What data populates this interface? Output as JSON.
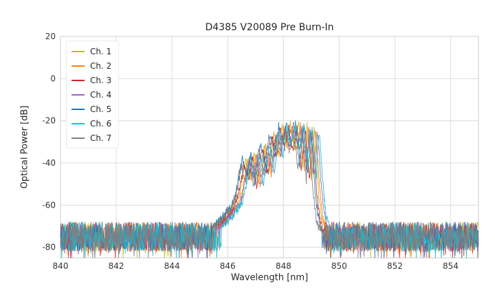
{
  "chart_data": {
    "type": "line",
    "title": "D4385 V20089 Pre Burn-In",
    "xlabel": "Wavelength [nm]",
    "ylabel": "Optical Power [dB]",
    "xlim": [
      840,
      855
    ],
    "ylim": [
      -85,
      20
    ],
    "x_ticks": [
      840,
      842,
      844,
      846,
      848,
      850,
      852,
      854
    ],
    "y_ticks": [
      20,
      0,
      -20,
      -40,
      -60,
      -80
    ],
    "grid": true,
    "grid_color": "#dcdcdc",
    "frame_color": "#cccccc",
    "legend_position": "upper left",
    "noise": {
      "mean_db": -75,
      "spread_db": 7,
      "spike_prob": 0.06,
      "spike_extra_db": 9,
      "x_step_nm": 0.015
    },
    "envelope_base": [
      [
        845.6,
        -70
      ],
      [
        845.9,
        -66
      ],
      [
        846.15,
        -62
      ],
      [
        846.35,
        -58
      ],
      [
        846.5,
        -50
      ],
      [
        846.65,
        -38
      ],
      [
        846.8,
        -46
      ],
      [
        846.95,
        -36
      ],
      [
        847.1,
        -50
      ],
      [
        847.3,
        -31
      ],
      [
        847.5,
        -44
      ],
      [
        847.65,
        -26
      ],
      [
        847.8,
        -36
      ],
      [
        847.95,
        -22.5
      ],
      [
        848.1,
        -31
      ],
      [
        848.25,
        -21
      ],
      [
        848.4,
        -33
      ],
      [
        848.55,
        -21.5
      ],
      [
        848.7,
        -41
      ],
      [
        848.85,
        -22.5
      ],
      [
        849.0,
        -46
      ],
      [
        849.1,
        -23.5
      ],
      [
        849.25,
        -52
      ],
      [
        849.35,
        -64
      ],
      [
        849.5,
        -72
      ]
    ],
    "series": [
      {
        "name": "Ch. 1",
        "color": "#bcbd22",
        "offset_nm": 0.0,
        "peak_adjust_db": 0,
        "seed": 1
      },
      {
        "name": "Ch. 2",
        "color": "#ff7f0e",
        "offset_nm": 0.06,
        "peak_adjust_db": -1,
        "seed": 2
      },
      {
        "name": "Ch. 3",
        "color": "#d62728",
        "offset_nm": -0.06,
        "peak_adjust_db": -1.5,
        "seed": 3
      },
      {
        "name": "Ch. 4",
        "color": "#9467bd",
        "offset_nm": 0.12,
        "peak_adjust_db": -0.5,
        "seed": 4
      },
      {
        "name": "Ch. 5",
        "color": "#1f77b4",
        "offset_nm": -0.12,
        "peak_adjust_db": 0,
        "seed": 5
      },
      {
        "name": "Ch. 6",
        "color": "#17becf",
        "offset_nm": 0.18,
        "peak_adjust_db": -0.5,
        "seed": 6
      },
      {
        "name": "Ch. 7",
        "color": "#7f7f7f",
        "offset_nm": -0.18,
        "peak_adjust_db": -2,
        "seed": 7
      }
    ]
  }
}
